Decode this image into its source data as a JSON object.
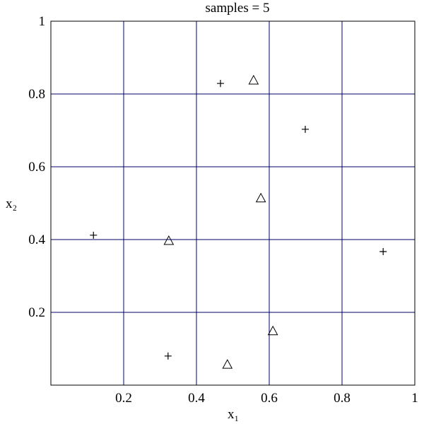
{
  "chart_data": {
    "type": "scatter",
    "title": "samples = 5",
    "xlabel": "x₁",
    "ylabel": "x₂",
    "xlim": [
      0,
      1
    ],
    "ylim": [
      0,
      1
    ],
    "xticks": [
      0.2,
      0.4,
      0.6,
      0.8,
      1
    ],
    "yticks": [
      0.2,
      0.4,
      0.6,
      0.8,
      1
    ],
    "grid": true,
    "grid_color": "#000066",
    "series": [
      {
        "marker": "plus",
        "color": "#000000",
        "x": [
          0.466,
          0.699,
          0.117,
          0.913,
          0.322
        ],
        "values": [
          0.829,
          0.703,
          0.412,
          0.367,
          0.08
        ]
      },
      {
        "marker": "triangle",
        "color": "#000000",
        "x": [
          0.557,
          0.577,
          0.324,
          0.61,
          0.485
        ],
        "values": [
          0.837,
          0.513,
          0.396,
          0.148,
          0.056
        ]
      }
    ]
  }
}
